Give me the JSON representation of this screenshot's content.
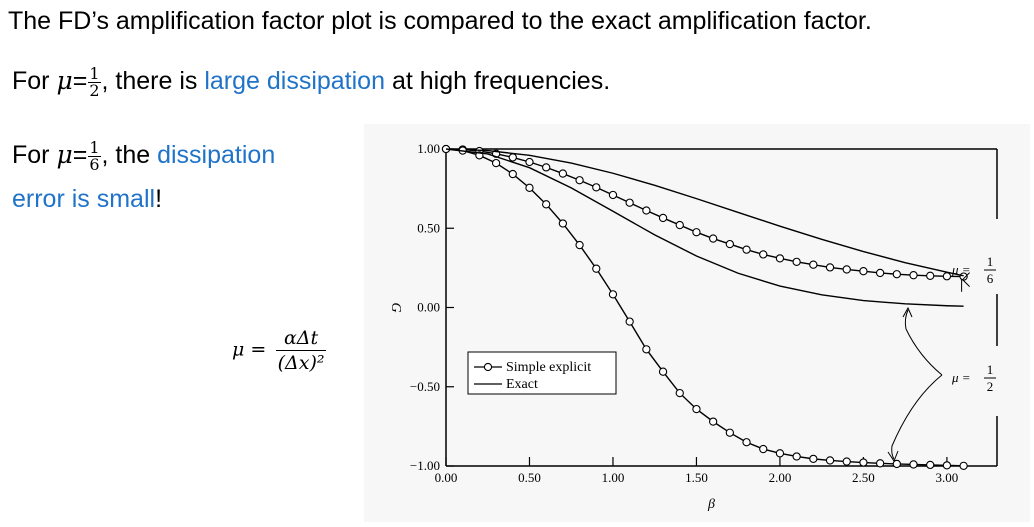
{
  "slide": {
    "title": "The FD’s amplification factor plot is compared to the exact amplification factor.",
    "line1": {
      "prefix": "For ",
      "mu": "μ",
      "eq": "=",
      "frac_num": "1",
      "frac_den": "2",
      "mid": ", there is ",
      "highlight": "large dissipation",
      "suffix": " at high frequencies."
    },
    "line2": {
      "prefix": "For ",
      "mu": "μ",
      "eq": "=",
      "frac_num": "1",
      "frac_den": "6",
      "mid": ", the ",
      "highlight_a": "dissipation",
      "highlight_b": "error is small",
      "suffix": "!"
    },
    "formula": {
      "lhs": "μ =",
      "numerator": "αΔt",
      "denominator": "(Δx)²"
    }
  },
  "chart_data": {
    "type": "line",
    "xlabel": "β",
    "ylabel": "G",
    "xlim": [
      0,
      3.3
    ],
    "ylim": [
      -1.0,
      1.0
    ],
    "xticks": [
      "0.00",
      "0.50",
      "1.00",
      "1.50",
      "2.00",
      "2.50",
      "3.00"
    ],
    "yticks": [
      "1.00",
      "0.50",
      "0.00",
      "−0.50",
      "−1.00"
    ],
    "legend_position": "lower-left",
    "legend": [
      "Simple explicit",
      "Exact"
    ],
    "annotations": [
      {
        "text_num": "1",
        "text_den": "6",
        "prefix": "μ ="
      },
      {
        "text_num": "1",
        "text_den": "2",
        "prefix": "μ ="
      }
    ],
    "series": [
      {
        "name": "Simple explicit",
        "mu": "1/6",
        "x": [
          0.0,
          0.1,
          0.2,
          0.3,
          0.4,
          0.5,
          0.6,
          0.7,
          0.8,
          0.9,
          1.0,
          1.1,
          1.2,
          1.3,
          1.4,
          1.5,
          1.6,
          1.7,
          1.8,
          1.9,
          2.0,
          2.1,
          2.2,
          2.3,
          2.4,
          2.5,
          2.6,
          2.7,
          2.8,
          2.9,
          3.0,
          3.1
        ],
        "y": [
          1.0,
          0.997,
          0.987,
          0.97,
          0.947,
          0.918,
          0.884,
          0.845,
          0.803,
          0.758,
          0.71,
          0.661,
          0.612,
          0.565,
          0.52,
          0.475,
          0.435,
          0.4,
          0.365,
          0.335,
          0.31,
          0.288,
          0.27,
          0.253,
          0.24,
          0.229,
          0.218,
          0.21,
          0.204,
          0.2,
          0.197,
          0.195
        ]
      },
      {
        "name": "Exact",
        "mu": "1/6",
        "x": [
          0.0,
          0.25,
          0.5,
          0.75,
          1.0,
          1.25,
          1.5,
          1.75,
          2.0,
          2.25,
          2.5,
          2.75,
          3.0,
          3.1
        ],
        "y": [
          1.0,
          0.99,
          0.96,
          0.911,
          0.847,
          0.771,
          0.687,
          0.6,
          0.513,
          0.43,
          0.353,
          0.283,
          0.223,
          0.2
        ]
      },
      {
        "name": "Simple explicit",
        "mu": "1/2",
        "x": [
          0.0,
          0.1,
          0.2,
          0.3,
          0.4,
          0.5,
          0.6,
          0.7,
          0.8,
          0.9,
          1.0,
          1.1,
          1.2,
          1.3,
          1.4,
          1.5,
          1.6,
          1.7,
          1.8,
          1.9,
          2.0,
          2.1,
          2.2,
          2.3,
          2.4,
          2.5,
          2.6,
          2.7,
          2.8,
          2.9,
          3.0,
          3.1
        ],
        "y": [
          1.0,
          0.99,
          0.96,
          0.911,
          0.842,
          0.755,
          0.651,
          0.53,
          0.394,
          0.245,
          0.083,
          -0.089,
          -0.264,
          -0.405,
          -0.54,
          -0.641,
          -0.72,
          -0.79,
          -0.85,
          -0.893,
          -0.92,
          -0.94,
          -0.955,
          -0.965,
          -0.972,
          -0.978,
          -0.983,
          -0.987,
          -0.99,
          -0.993,
          -0.996,
          -0.999
        ]
      },
      {
        "name": "Exact",
        "mu": "1/2",
        "x": [
          0.0,
          0.25,
          0.5,
          0.75,
          1.0,
          1.25,
          1.5,
          1.75,
          2.0,
          2.25,
          2.5,
          2.75,
          3.0,
          3.1
        ],
        "y": [
          1.0,
          0.969,
          0.882,
          0.755,
          0.607,
          0.458,
          0.325,
          0.216,
          0.135,
          0.08,
          0.044,
          0.023,
          0.011,
          0.008
        ]
      }
    ]
  }
}
